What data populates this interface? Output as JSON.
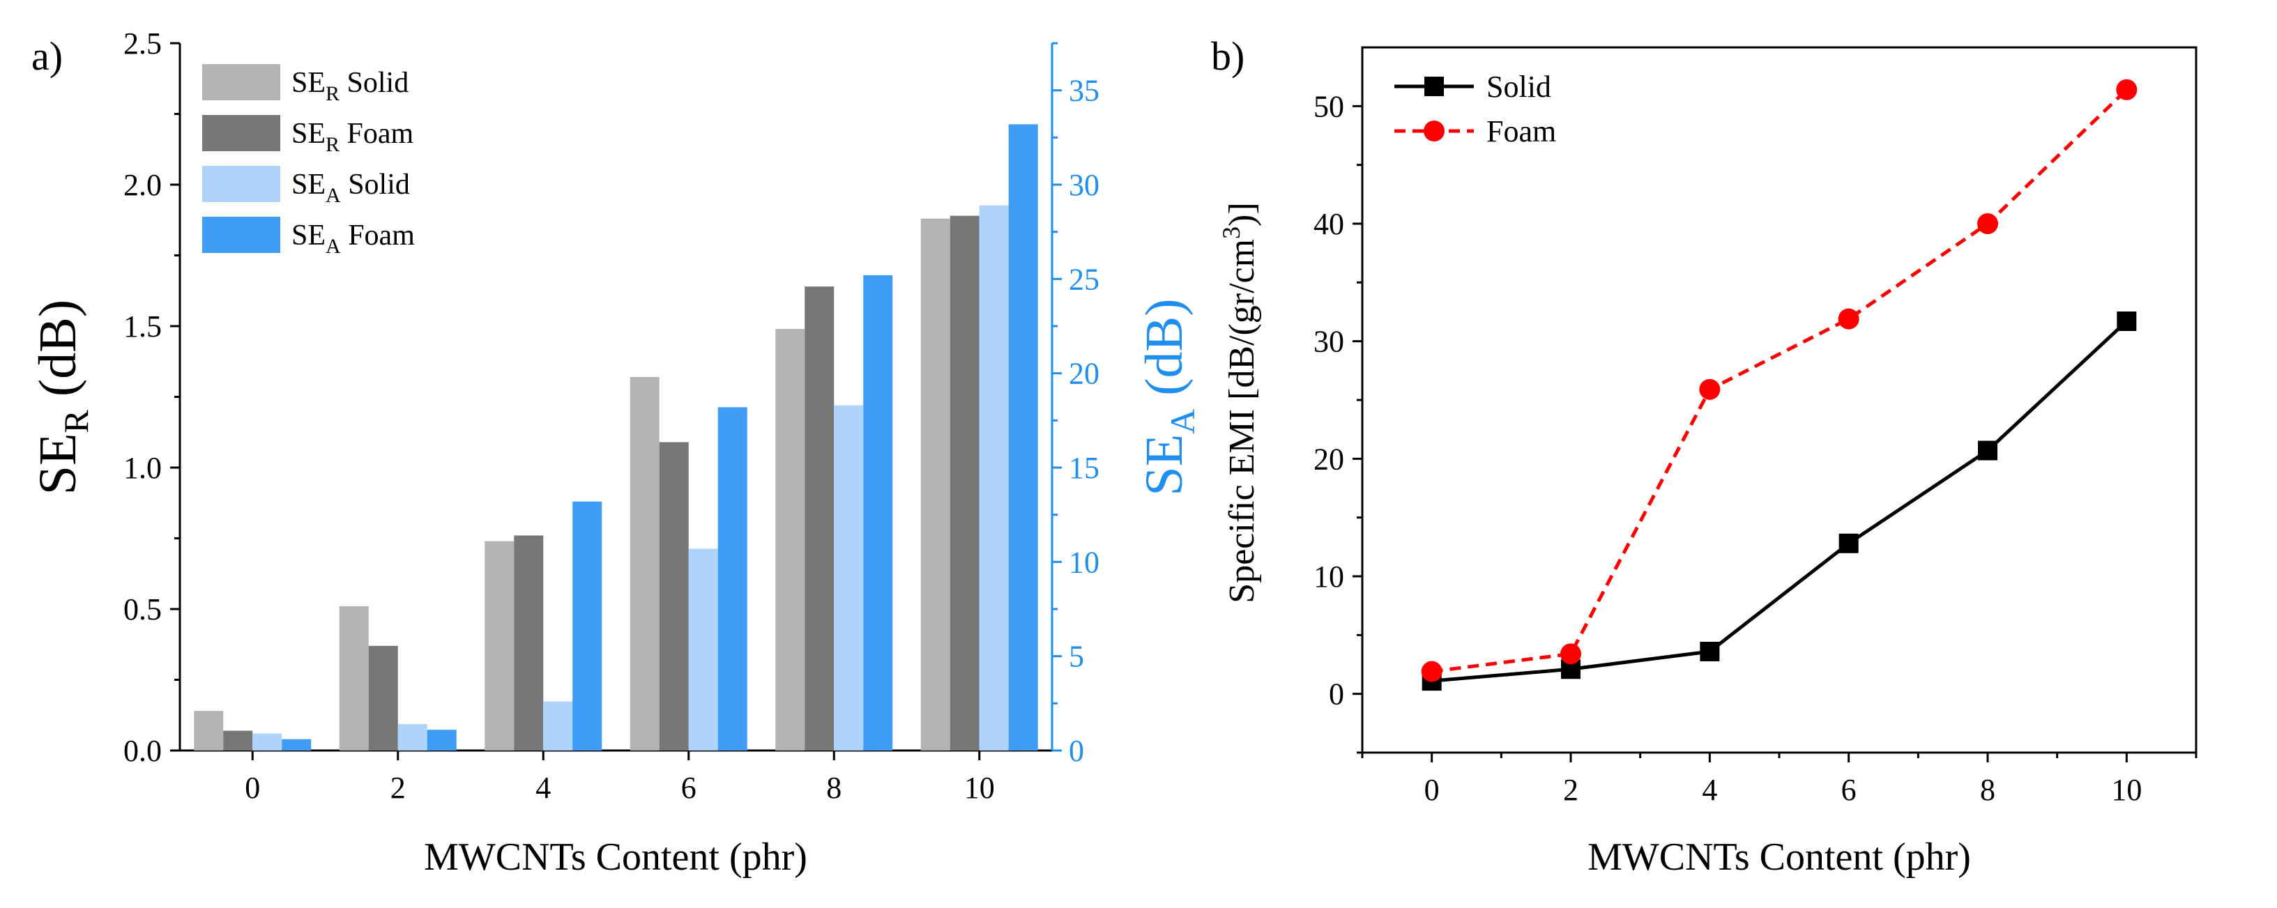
{
  "panels": {
    "a": {
      "label": "a)",
      "xlabel": "MWCNTs Content (phr)",
      "ylabel_left_main": "SE",
      "ylabel_left_sub": "R",
      "ylabel_left_unit": " (dB)",
      "ylabel_right_main": "SE",
      "ylabel_right_sub": "A",
      "ylabel_right_unit": " (dB)"
    },
    "b": {
      "label": "b)",
      "xlabel": "MWCNTs Content (phr)",
      "ylabel_pre": "Specific EMI [dB/(gr/cm",
      "ylabel_sup": "3",
      "ylabel_post": ")]"
    }
  },
  "colors": {
    "se_r_solid": "#b3b3b3",
    "se_r_foam": "#777777",
    "se_a_solid": "#aed4fb",
    "se_a_foam": "#3f9cf5",
    "right_axis": "#1f8ef1",
    "solid_line": "#000000",
    "foam_line": "#ff0000"
  },
  "chart_data": [
    {
      "type": "bar",
      "categories": [
        "0",
        "2",
        "4",
        "6",
        "8",
        "10"
      ],
      "left_axis": {
        "ylim": [
          0,
          2.5
        ],
        "ticks": [
          "0.0",
          "0.5",
          "1.0",
          "1.5",
          "2.0",
          "2.5"
        ]
      },
      "right_axis": {
        "ylim": [
          0,
          37.5
        ],
        "ticks": [
          "0",
          "5",
          "10",
          "15",
          "20",
          "25",
          "30",
          "35"
        ]
      },
      "series": [
        {
          "name_main": "SE",
          "name_sub": "R",
          "name_rest": " Solid",
          "axis": "left",
          "color_key": "se_r_solid",
          "values": [
            0.14,
            0.51,
            0.74,
            1.32,
            1.49,
            1.88
          ]
        },
        {
          "name_main": "SE",
          "name_sub": "R",
          "name_rest": " Foam",
          "axis": "left",
          "color_key": "se_r_foam",
          "values": [
            0.07,
            0.37,
            0.76,
            1.09,
            1.64,
            1.89
          ]
        },
        {
          "name_main": "SE",
          "name_sub": "A",
          "name_rest": " Solid",
          "axis": "right",
          "color_key": "se_a_solid",
          "values": [
            0.9,
            1.4,
            2.6,
            10.7,
            18.3,
            28.9
          ]
        },
        {
          "name_main": "SE",
          "name_sub": "A",
          "name_rest": " Foam",
          "axis": "right",
          "color_key": "se_a_foam",
          "values": [
            0.6,
            1.1,
            13.2,
            18.2,
            25.2,
            33.2
          ]
        }
      ],
      "legend_position": "top-left"
    },
    {
      "type": "line",
      "x": [
        0,
        2,
        4,
        6,
        8,
        10
      ],
      "xticks": [
        "0",
        "2",
        "4",
        "6",
        "8",
        "10"
      ],
      "ylim": [
        -5,
        55
      ],
      "xlim": [
        -1,
        11
      ],
      "yticks": [
        "0",
        "10",
        "20",
        "30",
        "40",
        "50"
      ],
      "series": [
        {
          "name": "Solid",
          "color_key": "solid_line",
          "marker": "square",
          "dash": false,
          "values": [
            1.1,
            2.1,
            3.6,
            12.8,
            20.7,
            31.7
          ]
        },
        {
          "name": "Foam",
          "color_key": "foam_line",
          "marker": "circle",
          "dash": true,
          "values": [
            1.9,
            3.4,
            25.9,
            31.9,
            40.0,
            51.4
          ]
        }
      ],
      "legend_position": "top-left"
    }
  ]
}
